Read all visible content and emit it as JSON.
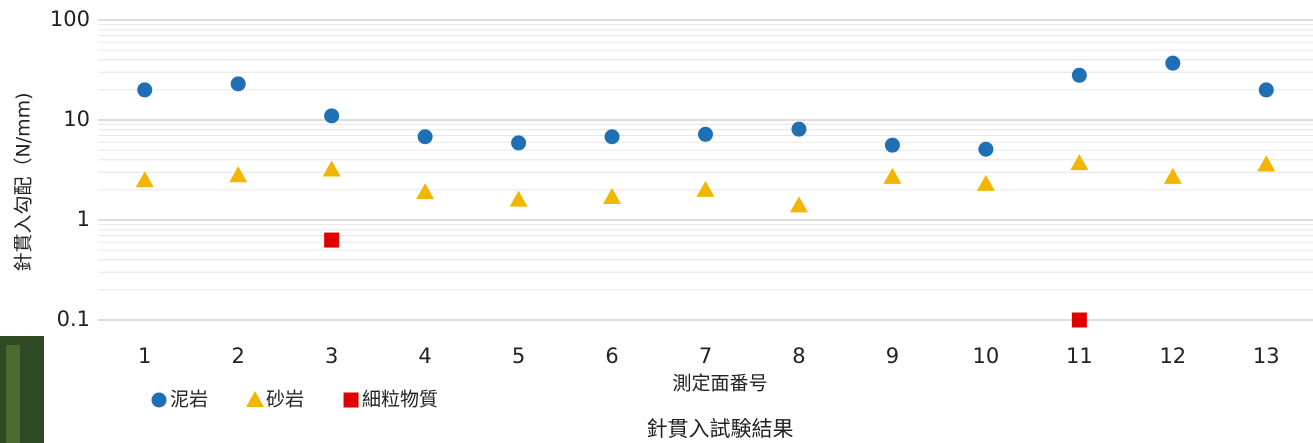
{
  "chart_data": {
    "type": "scatter",
    "title": "針貫入試験結果",
    "x_label": "測定面番号",
    "y_label": "針貫入勾配（N/mm)",
    "categories": [
      "1",
      "2",
      "3",
      "4",
      "5",
      "6",
      "7",
      "8",
      "9",
      "10",
      "11",
      "12",
      "13"
    ],
    "log_y": true,
    "ylim": [
      0.1,
      100
    ],
    "yticks": [
      0.1,
      1,
      10,
      100
    ],
    "grid": true,
    "minor_grid": true,
    "legend": "bottom-left",
    "series": [
      {
        "name": "泥岩",
        "color": "#1f6fb5",
        "marker": "circle",
        "values": [
          20,
          23,
          11,
          6.8,
          5.9,
          6.8,
          7.2,
          8.1,
          5.6,
          5.1,
          28,
          37,
          20
        ]
      },
      {
        "name": "砂岩",
        "color": "#f2b600",
        "marker": "triangle",
        "values": [
          2.5,
          2.8,
          3.2,
          1.9,
          1.6,
          1.7,
          2.0,
          1.4,
          2.7,
          2.3,
          3.7,
          2.7,
          3.6
        ]
      },
      {
        "name": "細粒物質",
        "color": "#e00000",
        "marker": "square",
        "values": [
          null,
          null,
          0.63,
          null,
          null,
          null,
          null,
          null,
          null,
          null,
          0.1,
          null,
          null
        ]
      }
    ]
  }
}
